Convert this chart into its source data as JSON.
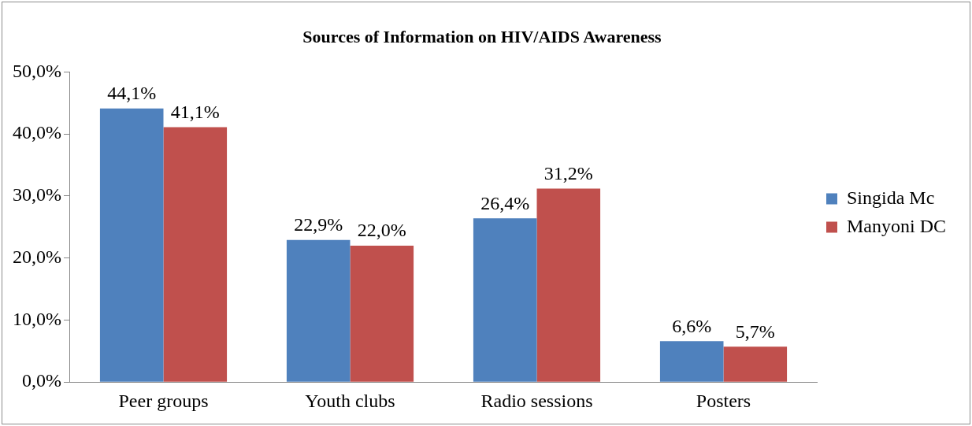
{
  "chart_data": {
    "type": "bar",
    "title": "Sources of Information on HIV/AIDS Awareness",
    "categories": [
      "Peer groups",
      "Youth clubs",
      "Radio sessions",
      "Posters"
    ],
    "series": [
      {
        "name": "Singida Mc",
        "color": "#4f81bd",
        "values": [
          44.1,
          22.9,
          26.4,
          6.6
        ],
        "value_labels": [
          "44,1%",
          "22,9%",
          "26,4%",
          "6,6%"
        ]
      },
      {
        "name": "Manyoni DC",
        "color": "#c0504d",
        "values": [
          41.1,
          22.0,
          31.2,
          5.7
        ],
        "value_labels": [
          "41,1%",
          "22,0%",
          "31,2%",
          "5,7%"
        ]
      }
    ],
    "ylim": [
      0,
      50
    ],
    "yticks": [
      {
        "value": 0,
        "label": "0,0%"
      },
      {
        "value": 10,
        "label": "10,0%"
      },
      {
        "value": 20,
        "label": "20,0%"
      },
      {
        "value": 30,
        "label": "30,0%"
      },
      {
        "value": 40,
        "label": "40,0%"
      },
      {
        "value": 50,
        "label": "50,0%"
      }
    ],
    "grid": false,
    "legend": "right"
  }
}
